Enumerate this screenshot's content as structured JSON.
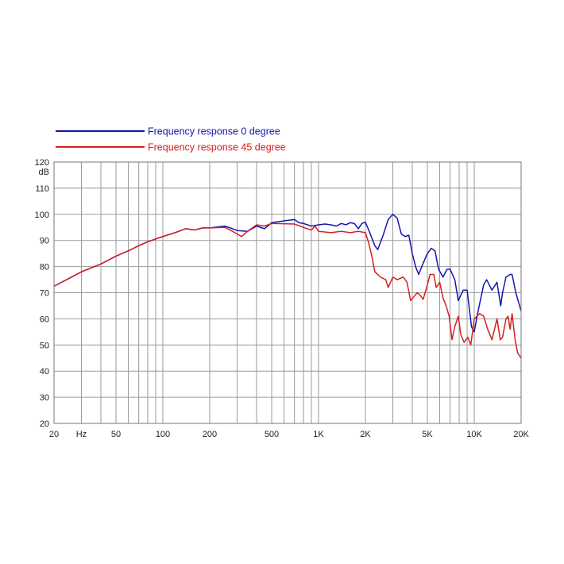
{
  "chart_data": {
    "type": "line",
    "x_scale": "log",
    "xlim": [
      20,
      20000
    ],
    "ylim": [
      20,
      120
    ],
    "grid": true,
    "legend_placement": "top-left",
    "y_unit_label": "dB",
    "y_ticks": [
      "20",
      "30",
      "40",
      "50",
      "60",
      "70",
      "80",
      "90",
      "100",
      "110",
      "120"
    ],
    "x_ticks": [
      {
        "value": 20,
        "label": "20"
      },
      {
        "value": 30,
        "label": "Hz"
      },
      {
        "value": 50,
        "label": "50"
      },
      {
        "value": 100,
        "label": "100"
      },
      {
        "value": 200,
        "label": "200"
      },
      {
        "value": 500,
        "label": "500"
      },
      {
        "value": 1000,
        "label": "1K"
      },
      {
        "value": 2000,
        "label": "2K"
      },
      {
        "value": 5000,
        "label": "5K"
      },
      {
        "value": 10000,
        "label": "10K"
      },
      {
        "value": 20000,
        "label": "20K"
      }
    ],
    "series": [
      {
        "name": "Frequency response 0 degree",
        "color": "#1515b0",
        "points": [
          [
            20,
            72.5
          ],
          [
            25,
            75.5
          ],
          [
            30,
            78
          ],
          [
            40,
            81
          ],
          [
            50,
            84
          ],
          [
            60,
            86
          ],
          [
            70,
            88
          ],
          [
            80,
            89.5
          ],
          [
            100,
            91.5
          ],
          [
            120,
            93
          ],
          [
            140,
            94.5
          ],
          [
            160,
            94
          ],
          [
            180,
            94.8
          ],
          [
            200,
            94.8
          ],
          [
            250,
            95.5
          ],
          [
            280,
            94.5
          ],
          [
            300,
            93.8
          ],
          [
            350,
            93.5
          ],
          [
            400,
            95.5
          ],
          [
            450,
            94.5
          ],
          [
            500,
            96.8
          ],
          [
            600,
            97.5
          ],
          [
            700,
            98
          ],
          [
            750,
            96.8
          ],
          [
            800,
            96.5
          ],
          [
            900,
            95.5
          ],
          [
            1000,
            96
          ],
          [
            1100,
            96.3
          ],
          [
            1200,
            96
          ],
          [
            1300,
            95.5
          ],
          [
            1400,
            96.5
          ],
          [
            1500,
            96
          ],
          [
            1600,
            96.8
          ],
          [
            1700,
            96.5
          ],
          [
            1800,
            94.5
          ],
          [
            1900,
            96.5
          ],
          [
            2000,
            97
          ],
          [
            2100,
            94
          ],
          [
            2300,
            88
          ],
          [
            2400,
            86.5
          ],
          [
            2600,
            92
          ],
          [
            2800,
            98
          ],
          [
            3000,
            100
          ],
          [
            3200,
            98.5
          ],
          [
            3400,
            92.5
          ],
          [
            3600,
            91.5
          ],
          [
            3800,
            92
          ],
          [
            4000,
            85
          ],
          [
            4200,
            80
          ],
          [
            4400,
            77
          ],
          [
            4600,
            80
          ],
          [
            5000,
            85
          ],
          [
            5300,
            87
          ],
          [
            5600,
            86
          ],
          [
            5900,
            79
          ],
          [
            6300,
            76
          ],
          [
            6700,
            79
          ],
          [
            7000,
            79
          ],
          [
            7500,
            75
          ],
          [
            7900,
            67
          ],
          [
            8500,
            71
          ],
          [
            9000,
            71
          ],
          [
            9600,
            57
          ],
          [
            10000,
            55
          ],
          [
            10500,
            62
          ],
          [
            11500,
            73
          ],
          [
            12000,
            75
          ],
          [
            13000,
            71
          ],
          [
            14000,
            74
          ],
          [
            14800,
            65
          ],
          [
            15200,
            70
          ],
          [
            16000,
            76
          ],
          [
            17000,
            77
          ],
          [
            17500,
            77
          ],
          [
            18500,
            70
          ],
          [
            20000,
            63
          ]
        ]
      },
      {
        "name": "Frequency response 45 degree",
        "color": "#d42020",
        "points": [
          [
            20,
            72.5
          ],
          [
            25,
            75.5
          ],
          [
            30,
            78
          ],
          [
            40,
            81
          ],
          [
            50,
            84
          ],
          [
            60,
            86
          ],
          [
            70,
            88
          ],
          [
            80,
            89.5
          ],
          [
            100,
            91.5
          ],
          [
            120,
            93
          ],
          [
            140,
            94.5
          ],
          [
            160,
            94
          ],
          [
            180,
            94.8
          ],
          [
            200,
            94.8
          ],
          [
            250,
            95
          ],
          [
            280,
            93.5
          ],
          [
            300,
            92.5
          ],
          [
            320,
            91.5
          ],
          [
            350,
            93.5
          ],
          [
            400,
            96
          ],
          [
            450,
            95.5
          ],
          [
            500,
            96.5
          ],
          [
            700,
            96.3
          ],
          [
            800,
            95
          ],
          [
            900,
            94
          ],
          [
            950,
            95.5
          ],
          [
            1000,
            93.5
          ],
          [
            1200,
            93
          ],
          [
            1400,
            93.5
          ],
          [
            1600,
            93
          ],
          [
            1800,
            93.5
          ],
          [
            2000,
            93
          ],
          [
            2100,
            89
          ],
          [
            2200,
            84
          ],
          [
            2300,
            78
          ],
          [
            2500,
            76
          ],
          [
            2700,
            75
          ],
          [
            2800,
            72
          ],
          [
            3000,
            76
          ],
          [
            3200,
            75
          ],
          [
            3500,
            76
          ],
          [
            3700,
            74
          ],
          [
            3900,
            67
          ],
          [
            4100,
            68.5
          ],
          [
            4300,
            70
          ],
          [
            4500,
            69
          ],
          [
            4700,
            67.5
          ],
          [
            5000,
            73
          ],
          [
            5200,
            77
          ],
          [
            5500,
            77
          ],
          [
            5700,
            72
          ],
          [
            6000,
            74
          ],
          [
            6300,
            68
          ],
          [
            6600,
            65
          ],
          [
            6900,
            61
          ],
          [
            7200,
            52
          ],
          [
            7500,
            57
          ],
          [
            7900,
            61
          ],
          [
            8200,
            54
          ],
          [
            8600,
            51
          ],
          [
            9100,
            53
          ],
          [
            9500,
            50
          ],
          [
            10000,
            60
          ],
          [
            10800,
            62
          ],
          [
            11500,
            61
          ],
          [
            12200,
            56
          ],
          [
            13000,
            52
          ],
          [
            14000,
            60
          ],
          [
            14700,
            52
          ],
          [
            15200,
            53
          ],
          [
            16000,
            60
          ],
          [
            16500,
            61
          ],
          [
            17000,
            56
          ],
          [
            17500,
            62
          ],
          [
            18300,
            52
          ],
          [
            19000,
            47
          ],
          [
            20000,
            45
          ]
        ]
      }
    ]
  }
}
